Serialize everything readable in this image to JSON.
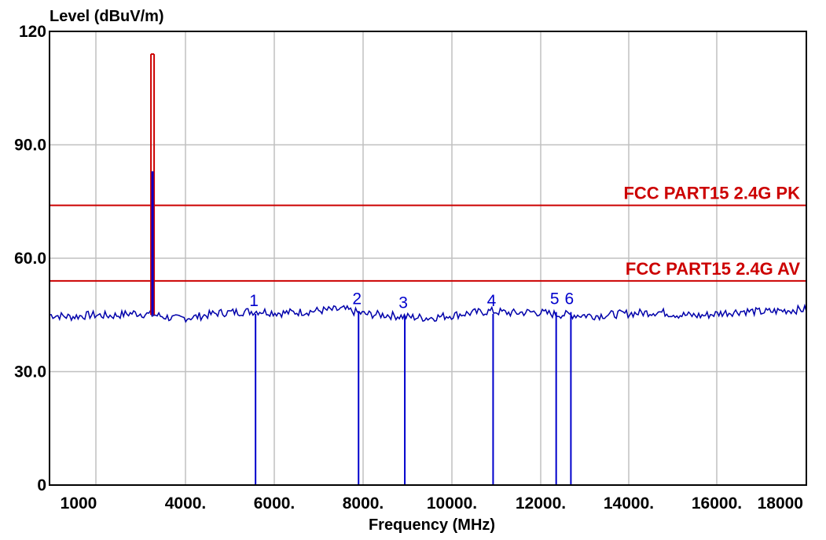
{
  "chart_data": {
    "type": "line",
    "title": "",
    "xlabel": "Frequency (MHz)",
    "ylabel": "Level (dBuV/m)",
    "xlim": [
      0,
      18000
    ],
    "ylim": [
      0,
      120
    ],
    "grid": true,
    "x_ticks": [
      {
        "value": 1000,
        "label": "1000"
      },
      {
        "value": 4000,
        "label": "4000."
      },
      {
        "value": 6000,
        "label": "6000."
      },
      {
        "value": 8000,
        "label": "8000."
      },
      {
        "value": 10000,
        "label": "10000."
      },
      {
        "value": 12000,
        "label": "12000."
      },
      {
        "value": 14000,
        "label": "14000."
      },
      {
        "value": 16000,
        "label": "16000."
      },
      {
        "value": 18000,
        "label": "18000"
      }
    ],
    "x_gridlines": [
      1000,
      3000,
      5000,
      7000,
      9000,
      10000,
      11000,
      13000,
      15000,
      17000
    ],
    "y_ticks": [
      {
        "value": 0,
        "label": "0"
      },
      {
        "value": 30,
        "label": "30.0"
      },
      {
        "value": 60,
        "label": "60.0"
      },
      {
        "value": 90,
        "label": "90.0"
      },
      {
        "value": 120,
        "label": "120"
      }
    ],
    "limit_lines": [
      {
        "name": "FCC PART15 2.4G PK",
        "value": 74,
        "color": "#cc0000"
      },
      {
        "name": "FCC PART15 2.4G AV",
        "value": 54,
        "color": "#cc0000"
      }
    ],
    "noise_floor": {
      "color": "#0000aa",
      "x": [
        0,
        500,
        1000,
        1500,
        2000,
        2500,
        3000,
        3500,
        4000,
        4500,
        5000,
        5500,
        6000,
        6500,
        7000,
        7500,
        8000,
        8500,
        9000,
        9500,
        10000,
        10500,
        11000,
        11500,
        12000,
        12500,
        13000,
        13500,
        14000,
        14500,
        15000,
        15500,
        16000,
        16500,
        17000,
        17500,
        18000
      ],
      "y": [
        45,
        44.5,
        45,
        44.8,
        45.5,
        45,
        44,
        44.5,
        45.5,
        45.8,
        46,
        45.5,
        45.8,
        46.2,
        46.5,
        45.2,
        45,
        44.5,
        44.2,
        44.8,
        45.5,
        46,
        45.5,
        45.8,
        45.2,
        45,
        44.8,
        45.2,
        45.5,
        45.8,
        45,
        44.8,
        45.5,
        46,
        45.8,
        46.2,
        46.5
      ]
    },
    "carrier": {
      "x": 2450,
      "peak": 114,
      "average": 83,
      "peak_color": "#cc0000",
      "average_color": "#0000cc"
    },
    "markers": [
      {
        "label": "1",
        "x": 4900,
        "value": 46.5
      },
      {
        "label": "2",
        "x": 7350,
        "value": 47
      },
      {
        "label": "3",
        "x": 8450,
        "value": 46
      },
      {
        "label": "4",
        "x": 10550,
        "value": 46.5
      },
      {
        "label": "5",
        "x": 12050,
        "value": 47
      },
      {
        "label": "6",
        "x": 12400,
        "value": 47
      }
    ],
    "colors": {
      "axis": "#000000",
      "grid": "#c0c0c0",
      "marker": "#0000cc",
      "limit_text": "#cc0000"
    }
  }
}
